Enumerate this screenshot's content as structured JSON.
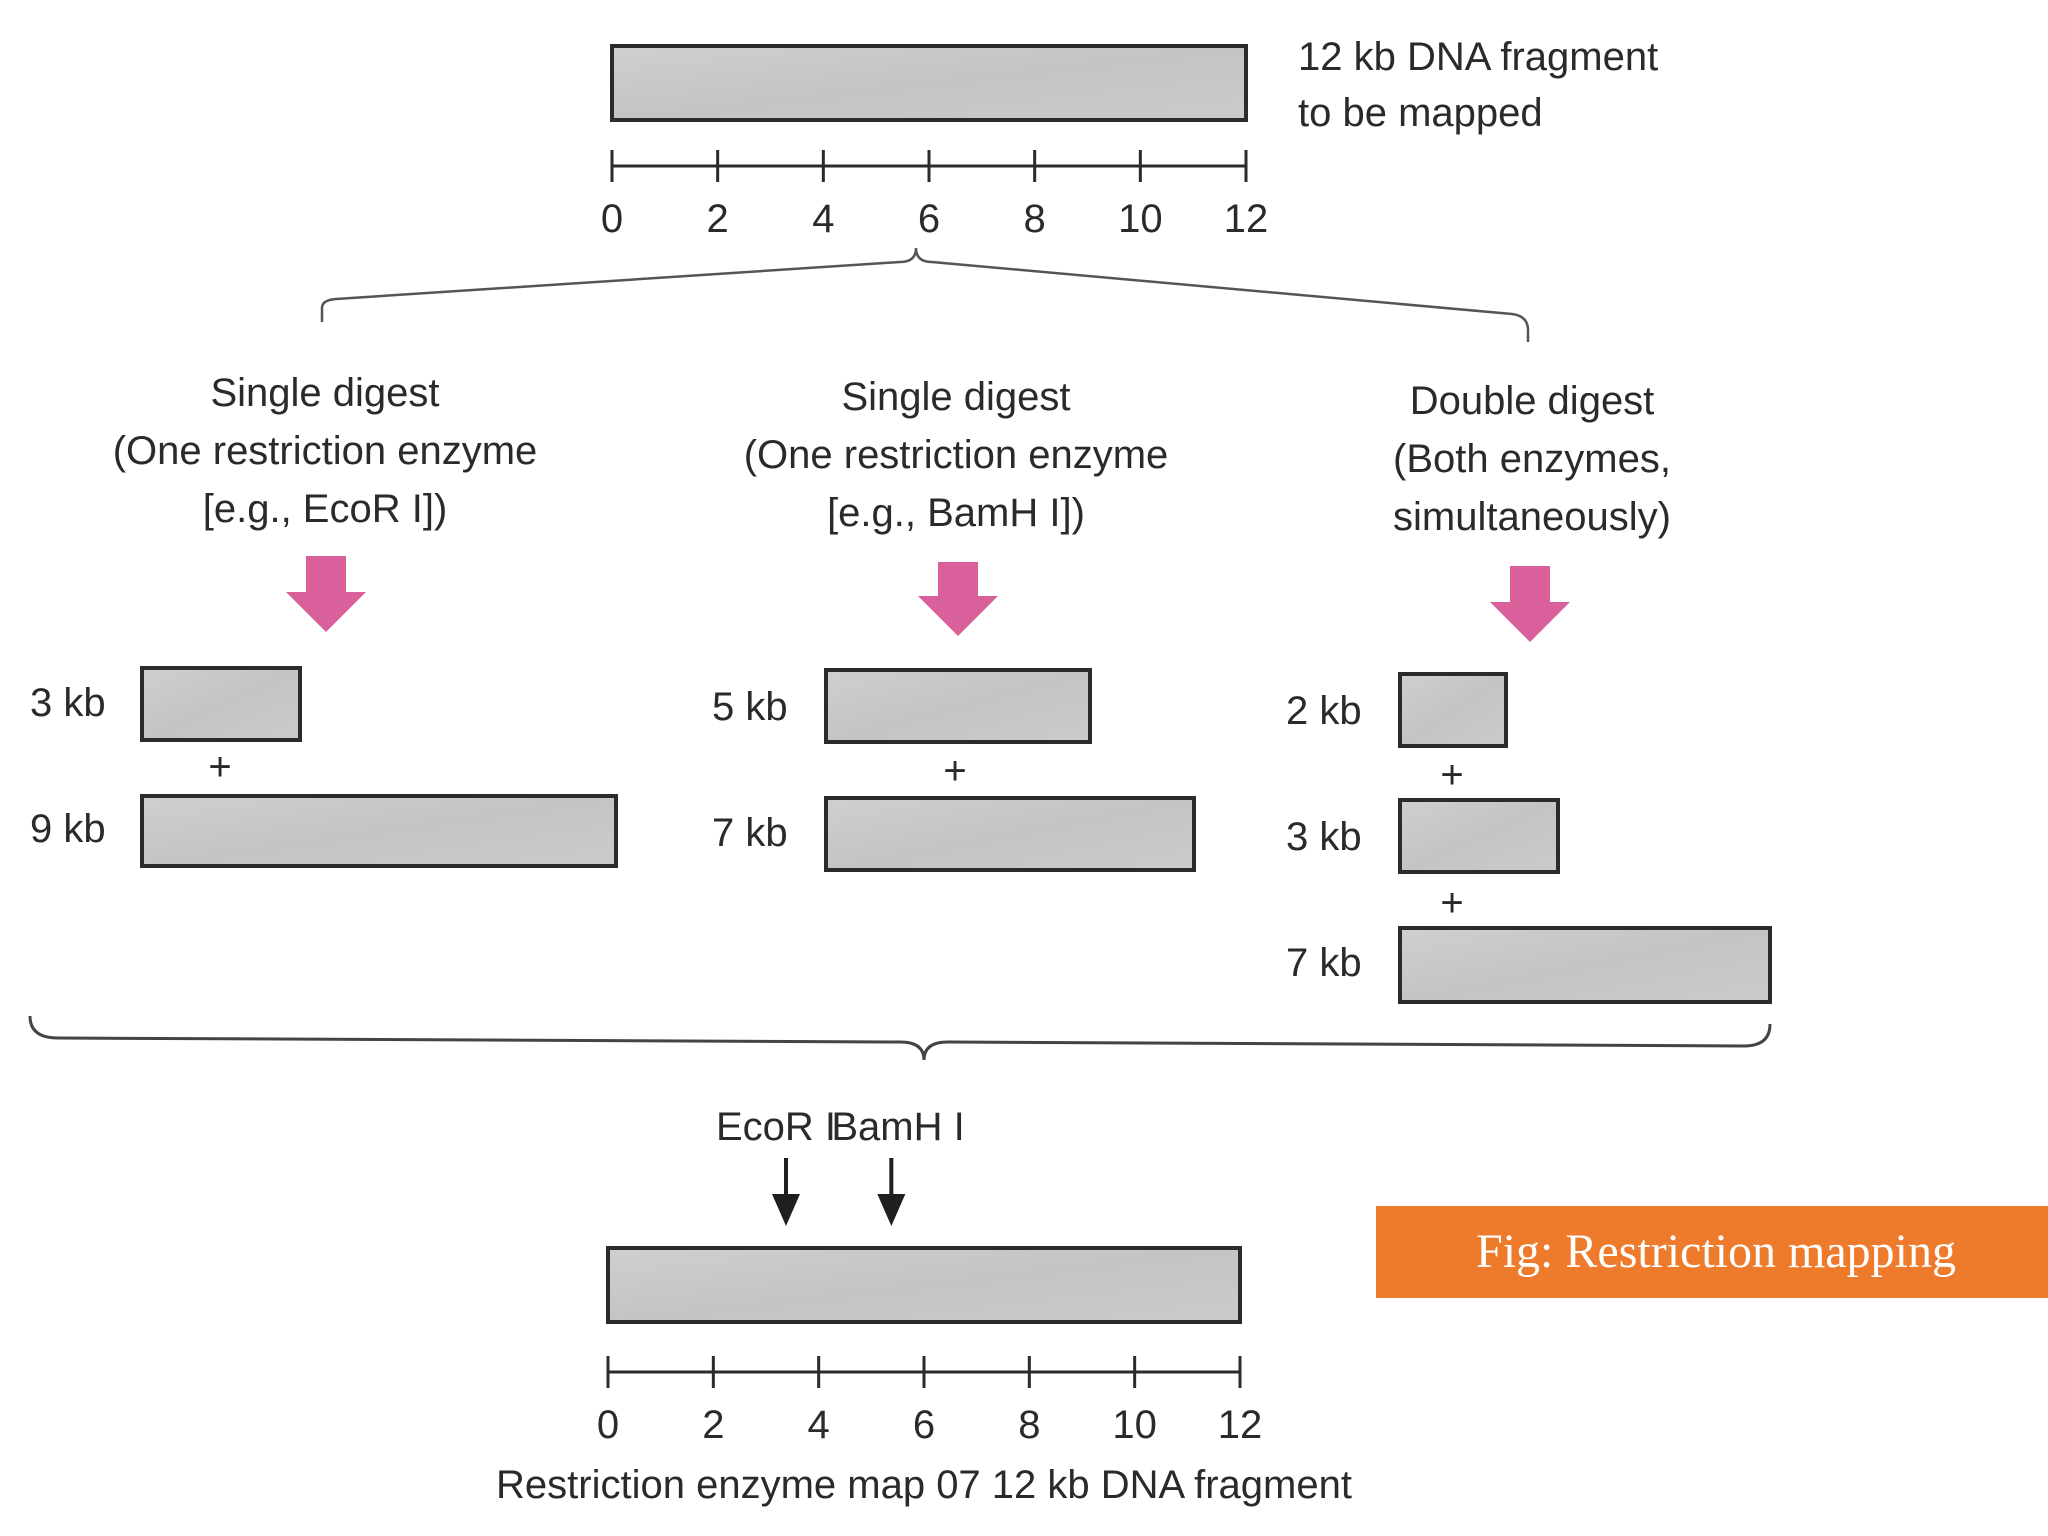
{
  "top_fragment": {
    "label_line1": "12 kb DNA fragment",
    "label_line2": "to be mapped",
    "scale_ticks": [
      "0",
      "2",
      "4",
      "6",
      "8",
      "10",
      "12"
    ]
  },
  "digests": [
    {
      "title": "Single digest",
      "line2": "(One restriction enzyme",
      "line3": "[e.g., EcoR I])",
      "fragments": [
        {
          "label": "3 kb",
          "size_kb": 3
        },
        {
          "label": "9 kb",
          "size_kb": 9
        }
      ]
    },
    {
      "title": "Single digest",
      "line2": "(One restriction enzyme",
      "line3": "[e.g., BamH I])",
      "fragments": [
        {
          "label": "5 kb",
          "size_kb": 5
        },
        {
          "label": "7 kb",
          "size_kb": 7
        }
      ]
    },
    {
      "title": "Double digest",
      "line2": "(Both enzymes,",
      "line3": "simultaneously)",
      "fragments": [
        {
          "label": "2 kb",
          "size_kb": 2
        },
        {
          "label": "3 kb",
          "size_kb": 3
        },
        {
          "label": "7 kb",
          "size_kb": 7
        }
      ]
    }
  ],
  "plus_sign": "+",
  "map": {
    "sites": [
      {
        "label": "EcoR I",
        "position_kb": 3
      },
      {
        "label": "BamH I",
        "position_kb": 5
      }
    ],
    "scale_ticks": [
      "0",
      "2",
      "4",
      "6",
      "8",
      "10",
      "12"
    ],
    "caption": "Restriction enzyme map 07 12 kb DNA fragment"
  },
  "figure_caption": "Fig: Restriction mapping",
  "colors": {
    "fragment_fill": "#c9c9c9",
    "fragment_border": "#2b2b2b",
    "arrow": "#d9609b",
    "caption_bg": "#ee7a2b"
  }
}
